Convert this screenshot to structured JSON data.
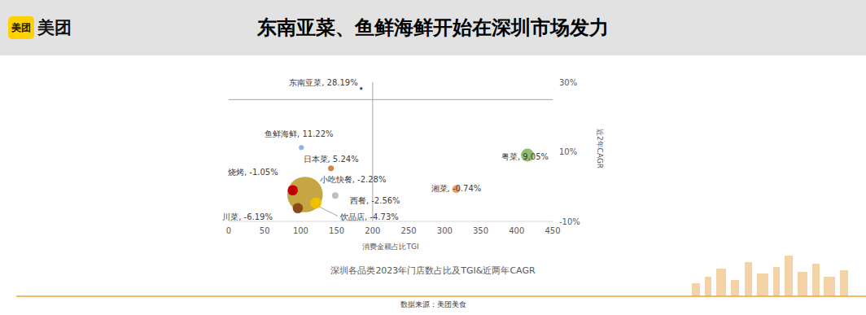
{
  "header": {
    "logo_badge": "美团",
    "logo_text": "美团",
    "title": "东南亚菜、鱼鲜海鲜开始在深圳市场发力"
  },
  "chart_data": {
    "type": "scatter",
    "title": "深圳各品类2023年门店数占比及TGI&近两年CAGR",
    "x_label": "消费金额占比TGI",
    "y_label": "近2年CAGR",
    "categories": [
      "小吃快餐",
      "东南亚菜",
      "鱼鲜海鲜",
      "日本菜",
      "粤菜",
      "湘菜",
      "烧烤",
      "西餐",
      "饮品店",
      "川菜"
    ],
    "x": [
      106,
      184,
      101,
      142,
      415,
      316,
      89,
      148,
      121,
      96
    ],
    "values": [
      -2.28,
      28.19,
      11.22,
      5.24,
      9.05,
      -0.74,
      -1.05,
      -2.56,
      -4.73,
      -6.19
    ],
    "value_labels": [
      "小吃快餐, -2.28%",
      "东南亚菜, 28.19%",
      "鱼鲜海鲜, 11.22%",
      "日本菜, 5.24%",
      "粤菜, 9.05%",
      "湘菜, -0.74%",
      "烧烤, -1.05%",
      "西餐, -2.56%",
      "饮品店, -4.73%",
      "川菜, -6.19%"
    ],
    "sizes": [
      30,
      0.2,
      0.6,
      0.8,
      4,
      1.5,
      2.5,
      1,
      3,
      2.5
    ],
    "colors": [
      "#bf9b30",
      "#44546a",
      "#8fb4dc",
      "#d9843b",
      "#8fbf6e",
      "#eba06a",
      "#c00000",
      "#bfbfbf",
      "#f0c000",
      "#8b4a1c"
    ],
    "xlim": [
      0,
      450
    ],
    "xticks": [
      0,
      50,
      100,
      150,
      200,
      250,
      300,
      350,
      400,
      450
    ],
    "ylim": [
      -10,
      30
    ],
    "yticks": [
      {
        "value": -10,
        "label": "-10%"
      },
      {
        "value": 10,
        "label": "10%"
      },
      {
        "value": 30,
        "label": "30%"
      }
    ],
    "reference_x": 200,
    "reference_y": 25,
    "data_labels": true,
    "grid": false,
    "marker": "circle"
  },
  "source": "数据来源：美团美食"
}
